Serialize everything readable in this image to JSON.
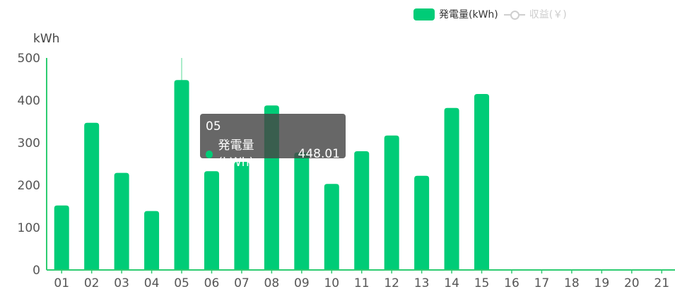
{
  "chart_data": {
    "type": "bar",
    "ylabel": "kWh",
    "ylim": [
      0,
      500
    ],
    "yticks": [
      0,
      100,
      200,
      300,
      400,
      500
    ],
    "categories": [
      "01",
      "02",
      "03",
      "04",
      "05",
      "06",
      "07",
      "08",
      "09",
      "10",
      "11",
      "12",
      "13",
      "14",
      "15",
      "16",
      "17",
      "18",
      "19",
      "20",
      "21"
    ],
    "series": [
      {
        "name": "発電量(kWh)",
        "values": [
          152,
          347,
          229,
          139,
          448.01,
          233,
          255,
          388,
          277,
          203,
          280,
          317,
          222,
          382,
          415,
          0,
          0,
          0,
          0,
          0,
          0
        ]
      }
    ],
    "legend_position": "top-right",
    "grid": false
  },
  "legend": {
    "items": [
      {
        "label": "発電量(kWh)",
        "color": "#00cc77",
        "state": "active"
      },
      {
        "label": "収益(￥)",
        "color": "#cfcfcf",
        "state": "inactive"
      }
    ]
  },
  "tooltip": {
    "category": "05",
    "series_label": "発電量(kWh)：",
    "value": "448.01"
  },
  "colors": {
    "bar": "#00cc77",
    "axis": "#2ecc71",
    "highlight_line": "#8ee6b8"
  }
}
